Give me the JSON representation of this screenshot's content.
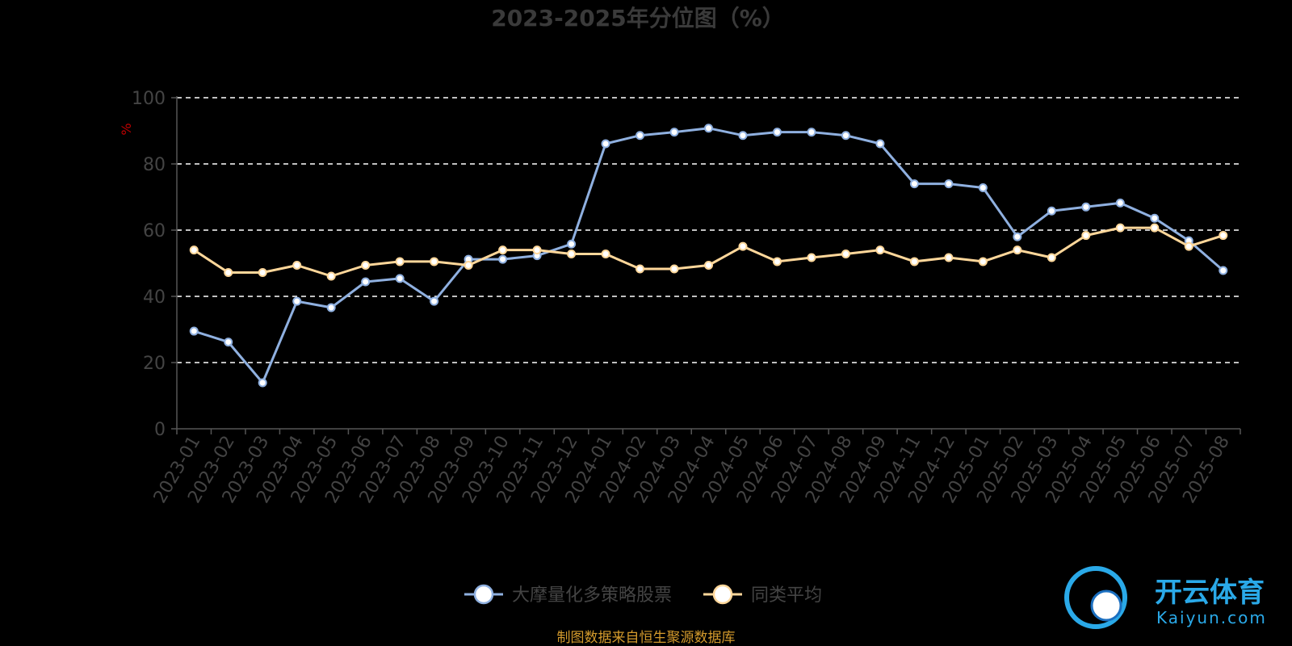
{
  "chart_data": {
    "type": "line",
    "title": "2023-2025年分位图（%）",
    "ylabel": "%",
    "xlabel": "",
    "ylim": [
      0,
      100
    ],
    "yticks": [
      0,
      20,
      40,
      60,
      80,
      100
    ],
    "grid": true,
    "legend_position": "bottom",
    "categories": [
      "2023-01",
      "2023-02",
      "2023-03",
      "2023-04",
      "2023-05",
      "2023-06",
      "2023-07",
      "2023-08",
      "2023-09",
      "2023-10",
      "2023-11",
      "2023-12",
      "2024-01",
      "2024-02",
      "2024-03",
      "2024-04",
      "2024-05",
      "2024-06",
      "2024-07",
      "2024-08",
      "2024-09",
      "2024-11",
      "2024-12",
      "2025-01",
      "2025-02",
      "2025-03",
      "2025-04",
      "2025-05",
      "2025-06",
      "2025-07",
      "2025-08"
    ],
    "series": [
      {
        "name": "大摩量化多策略股票",
        "color": "#8fb0e0",
        "values": [
          29.5,
          26.2,
          13.9,
          38.5,
          36.6,
          44.4,
          45.4,
          38.5,
          51.2,
          51.2,
          52.3,
          55.8,
          86.1,
          88.6,
          89.6,
          90.8,
          88.6,
          89.6,
          89.6,
          88.6,
          86.1,
          74.0,
          74.0,
          72.8,
          58.0,
          65.8,
          67.0,
          68.2,
          63.6,
          56.8,
          47.8
        ]
      },
      {
        "name": "同类平均",
        "color": "#ffd79a",
        "values": [
          54.0,
          47.2,
          47.2,
          49.4,
          46.1,
          49.4,
          50.5,
          50.5,
          49.4,
          54.0,
          54.0,
          52.8,
          52.8,
          48.3,
          48.3,
          49.4,
          55.1,
          50.5,
          51.7,
          52.8,
          54.0,
          50.5,
          51.7,
          50.5,
          54.0,
          51.7,
          58.4,
          60.7,
          60.7,
          55.1,
          58.4
        ]
      }
    ]
  },
  "footer": {
    "source": "制图数据来自恒生聚源数据库"
  },
  "watermark": {
    "brand_cn": "开云体育",
    "brand_en": "Kaiyun.com"
  }
}
